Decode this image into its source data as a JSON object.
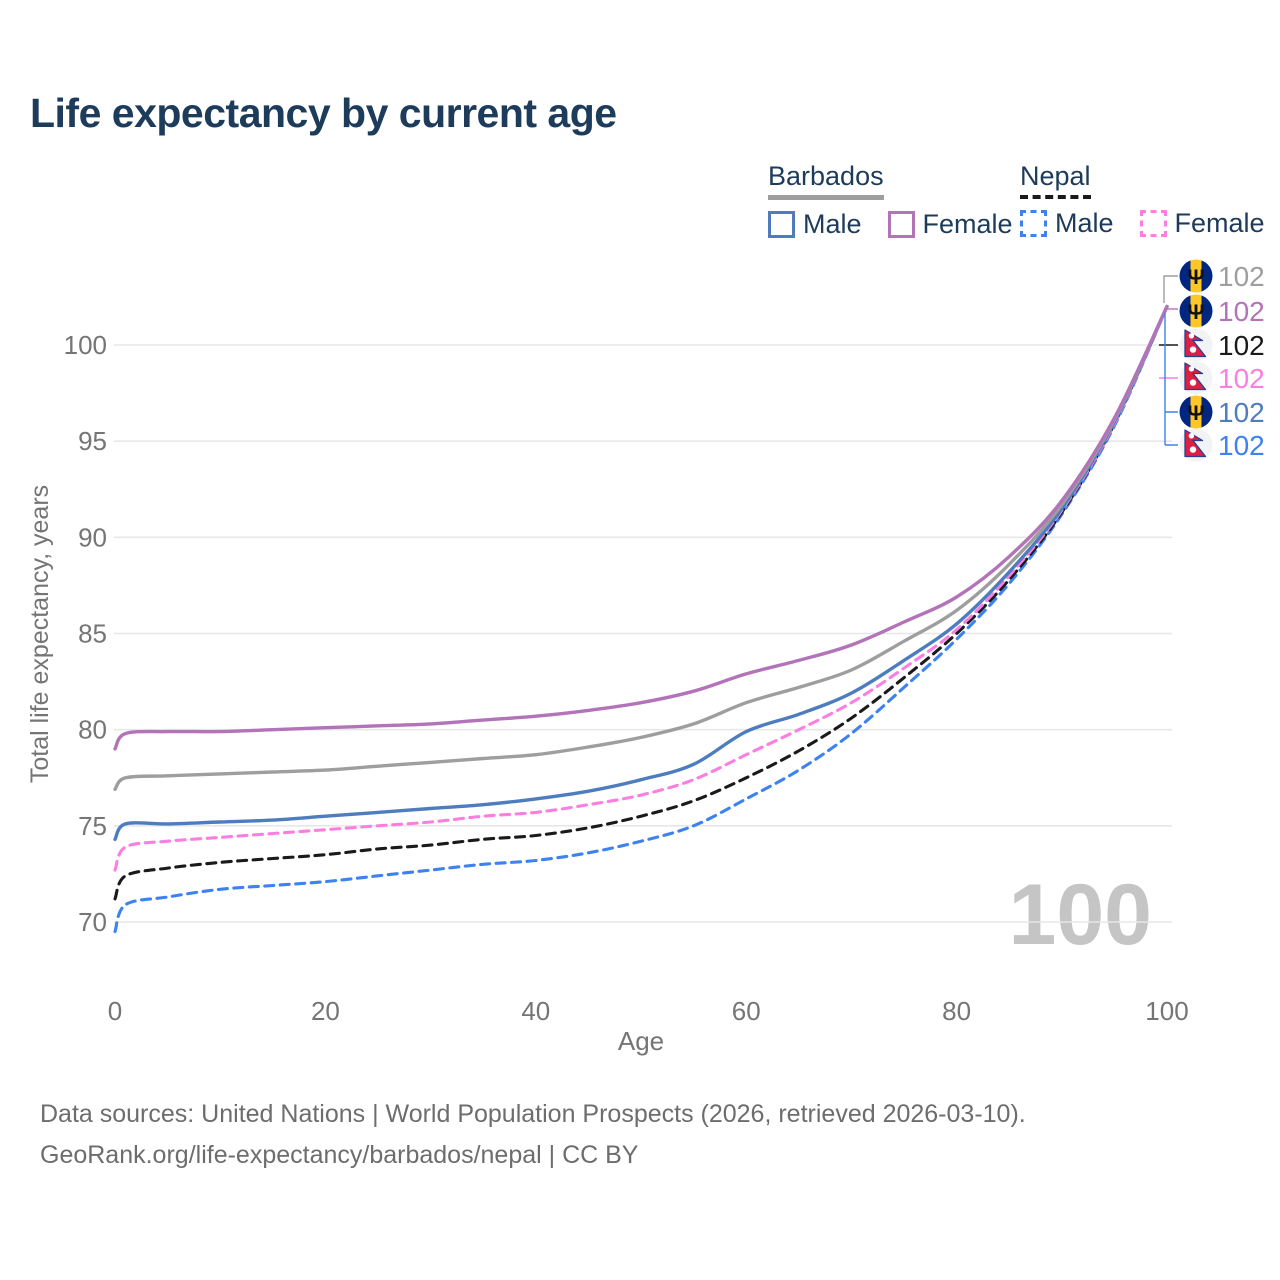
{
  "title": "Life expectancy by current age",
  "legend": {
    "groups": [
      {
        "name": "Barbados",
        "series": "Barbados Both sexes",
        "items": [
          {
            "label": "Male",
            "series": "Barbados Male"
          },
          {
            "label": "Female",
            "series": "Barbados Female"
          }
        ]
      },
      {
        "name": "Nepal",
        "series": "Nepal Both sexes",
        "items": [
          {
            "label": "Male",
            "series": "Nepal Male"
          },
          {
            "label": "Female",
            "series": "Nepal Female"
          }
        ]
      }
    ]
  },
  "watermark": "100",
  "end_labels": [
    {
      "flag": "barbados",
      "series": "Barbados Both sexes",
      "value": "102",
      "color": "#9e9e9e"
    },
    {
      "flag": "barbados",
      "series": "Barbados Female",
      "value": "102",
      "color": "#b273b8"
    },
    {
      "flag": "nepal",
      "series": "Nepal Both sexes",
      "value": "102",
      "color": "#1a1a1a"
    },
    {
      "flag": "nepal",
      "series": "Nepal Female",
      "value": "102",
      "color": "#fb7fe1"
    },
    {
      "flag": "barbados",
      "series": "Barbados Male",
      "value": "102",
      "color": "#4d7dbf"
    },
    {
      "flag": "nepal",
      "series": "Nepal Male",
      "value": "102",
      "color": "#3d82f0"
    }
  ],
  "footer": {
    "line1": "Data sources: United Nations | World Population Prospects (2026, retrieved 2026-03-10).",
    "line2": "GeoRank.org/life-expectancy/barbados/nepal | CC BY"
  },
  "colors": {
    "title_text": "#1d3b5a",
    "axis_text": "#757575",
    "gridline": "#e7e7e7",
    "watermark": "#c5c5c5",
    "footer_text": "#6d6d6d",
    "barbados_flag_blue": "#00267F",
    "barbados_flag_yellow": "#FFC726",
    "nepal_flag_crimson": "#dc1f43",
    "nepal_flag_border_blue": "#2a3f90"
  },
  "chart_data": {
    "type": "line",
    "title": "Life expectancy by current age",
    "xlabel": "Age",
    "ylabel": "Total life expectancy, years",
    "x_ticks": [
      0,
      20,
      40,
      60,
      80,
      100
    ],
    "y_ticks": [
      70,
      75,
      80,
      85,
      90,
      95,
      100
    ],
    "xlim": [
      0,
      100
    ],
    "ylim": [
      69,
      103
    ],
    "grid": "horizontal",
    "legend_position": "top-right",
    "x": [
      0,
      1,
      5,
      10,
      15,
      20,
      25,
      30,
      35,
      40,
      45,
      50,
      55,
      60,
      65,
      70,
      75,
      80,
      85,
      90,
      95,
      100
    ],
    "series": [
      {
        "name": "Nepal Male",
        "country": "Nepal",
        "sex": "Male",
        "dash": true,
        "color": "#3d82f0",
        "values": [
          69.5,
          70.9,
          71.3,
          71.7,
          71.9,
          72.1,
          72.4,
          72.7,
          73.0,
          73.2,
          73.6,
          74.2,
          75.0,
          76.4,
          77.9,
          79.8,
          82.2,
          84.7,
          87.6,
          91.2,
          95.8,
          102
        ]
      },
      {
        "name": "Nepal Both sexes",
        "country": "Nepal",
        "sex": "Both",
        "dash": true,
        "color": "#1a1a1a",
        "values": [
          71.2,
          72.4,
          72.8,
          73.1,
          73.3,
          73.5,
          73.8,
          74.0,
          74.3,
          74.5,
          74.9,
          75.5,
          76.3,
          77.5,
          78.9,
          80.6,
          82.7,
          85.0,
          87.8,
          91.3,
          95.9,
          102
        ]
      },
      {
        "name": "Nepal Female",
        "country": "Nepal",
        "sex": "Female",
        "dash": true,
        "color": "#fb7fe1",
        "values": [
          72.7,
          73.9,
          74.2,
          74.4,
          74.6,
          74.8,
          75.0,
          75.2,
          75.5,
          75.7,
          76.1,
          76.6,
          77.4,
          78.7,
          80.0,
          81.4,
          83.2,
          85.2,
          88.0,
          91.4,
          95.9,
          102
        ]
      },
      {
        "name": "Barbados Male",
        "country": "Barbados",
        "sex": "Male",
        "dash": false,
        "color": "#4d7dbf",
        "values": [
          74.3,
          75.1,
          75.1,
          75.2,
          75.3,
          75.5,
          75.7,
          75.9,
          76.1,
          76.4,
          76.8,
          77.4,
          78.2,
          79.9,
          80.8,
          81.9,
          83.6,
          85.5,
          88.2,
          91.5,
          96.0,
          102
        ]
      },
      {
        "name": "Barbados Both sexes",
        "country": "Barbados",
        "sex": "Both",
        "dash": false,
        "color": "#9e9e9e",
        "values": [
          76.9,
          77.5,
          77.6,
          77.7,
          77.8,
          77.9,
          78.1,
          78.3,
          78.5,
          78.7,
          79.1,
          79.6,
          80.3,
          81.4,
          82.2,
          83.1,
          84.6,
          86.2,
          88.6,
          91.7,
          96.1,
          102
        ]
      },
      {
        "name": "Barbados Female",
        "country": "Barbados",
        "sex": "Female",
        "dash": false,
        "color": "#b273b8",
        "values": [
          79.0,
          79.8,
          79.9,
          79.9,
          80.0,
          80.1,
          80.2,
          80.3,
          80.5,
          80.7,
          81.0,
          81.4,
          82.0,
          82.9,
          83.6,
          84.4,
          85.6,
          86.9,
          89.0,
          91.9,
          96.2,
          102
        ]
      }
    ]
  }
}
